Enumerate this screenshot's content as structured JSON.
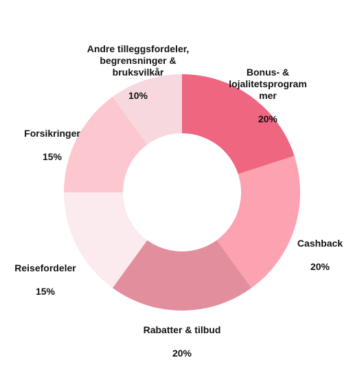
{
  "chart_data": {
    "type": "pie",
    "donut": true,
    "title": "",
    "slices": [
      {
        "label": "Bonus- &\nlojalitetsprogram\nmer",
        "value": 20,
        "value_label": "20%",
        "color": "#ef6680"
      },
      {
        "label": "Cashback",
        "value": 20,
        "value_label": "20%",
        "color": "#fca2b0"
      },
      {
        "label": "Rabatter & tilbud",
        "value": 20,
        "value_label": "20%",
        "color": "#e38e9c"
      },
      {
        "label": "Reisefordeler",
        "value": 15,
        "value_label": "15%",
        "color": "#fcebee"
      },
      {
        "label": "Forsikringer",
        "value": 15,
        "value_label": "15%",
        "color": "#fdc7d0"
      },
      {
        "label": "Andre tilleggsfordeler,\nbegrensninger &\nbruksvilkår",
        "value": 10,
        "value_label": "10%",
        "color": "#f6d8de"
      }
    ]
  }
}
